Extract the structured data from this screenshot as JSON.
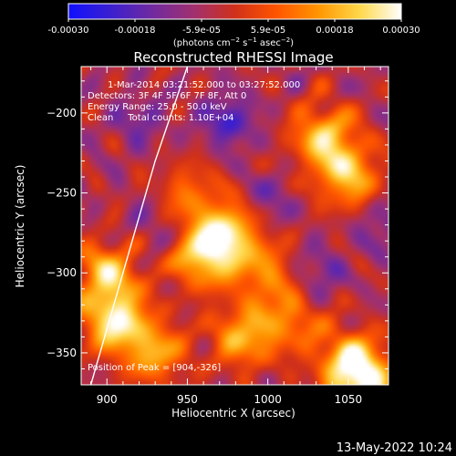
{
  "colorbar": {
    "ticks": [
      "-0.00030",
      "-0.00018",
      "-5.9e-05",
      "5.9e-05",
      "0.00018",
      "0.00030"
    ],
    "units_prefix": "(photons cm",
    "units_exp1": "−2",
    "units_mid": " s",
    "units_exp2": "−1",
    "units_mid2": " asec",
    "units_exp3": "−2",
    "units_suffix": ")",
    "colors": [
      "#1010ff",
      "#3a1fd0",
      "#6f2aa0",
      "#a03070",
      "#d0301a",
      "#ff5500",
      "#ff9500",
      "#ffd84a",
      "#ffffff"
    ]
  },
  "chart_data": {
    "type": "heatmap",
    "title": "Reconstructed RHESSI Image",
    "xlabel": "Heliocentric X (arcsec)",
    "ylabel": "Heliocentric Y (arcsec)",
    "xlim": [
      884,
      1075
    ],
    "ylim": [
      -370,
      -171
    ],
    "xticks": [
      900,
      950,
      1000,
      1050
    ],
    "yticks": [
      -200,
      -250,
      -300,
      -350
    ],
    "annotations": {
      "time": "1-Mar-2014 03:21:52.000 to 03:27:52.000",
      "detectors": "Detectors: 3F 4F 5F 6F 7F 8F, Att 0",
      "energy": "Energy Range: 25.0 - 50.0 keV",
      "clean": "Clean     Total counts: 1.10E+04",
      "peak": "Position of Peak = [904,-326]"
    },
    "peak": [
      904,
      -326
    ],
    "hot_regions": [
      {
        "x": 905,
        "y": -330,
        "level": 1.0
      },
      {
        "x": 900,
        "y": -300,
        "level": 0.8
      },
      {
        "x": 930,
        "y": -350,
        "level": 0.7
      },
      {
        "x": 960,
        "y": -290,
        "level": 0.85
      },
      {
        "x": 975,
        "y": -275,
        "level": 0.9
      },
      {
        "x": 985,
        "y": -340,
        "level": 0.75
      },
      {
        "x": 1035,
        "y": -215,
        "level": 0.85
      },
      {
        "x": 1050,
        "y": -240,
        "level": 0.8
      },
      {
        "x": 1015,
        "y": -330,
        "level": 0.5
      },
      {
        "x": 1050,
        "y": -355,
        "level": 0.75
      },
      {
        "x": 1060,
        "y": -368,
        "level": 0.9
      },
      {
        "x": 950,
        "y": -250,
        "level": 0.45
      },
      {
        "x": 1000,
        "y": -300,
        "level": 0.55
      }
    ],
    "cold_regions": [
      {
        "x": 975,
        "y": -205,
        "level": 0.9
      },
      {
        "x": 920,
        "y": -205,
        "level": 0.5
      },
      {
        "x": 1000,
        "y": -255,
        "level": 0.5
      },
      {
        "x": 1030,
        "y": -300,
        "level": 0.6
      },
      {
        "x": 1070,
        "y": -270,
        "level": 0.5
      },
      {
        "x": 930,
        "y": -270,
        "level": 0.4
      }
    ],
    "limb_curve": [
      [
        950,
        -171
      ],
      [
        930,
        -230
      ],
      [
        910,
        -300
      ],
      [
        890,
        -370
      ]
    ]
  },
  "footer": {
    "date": "13-May-2022 10:24"
  }
}
